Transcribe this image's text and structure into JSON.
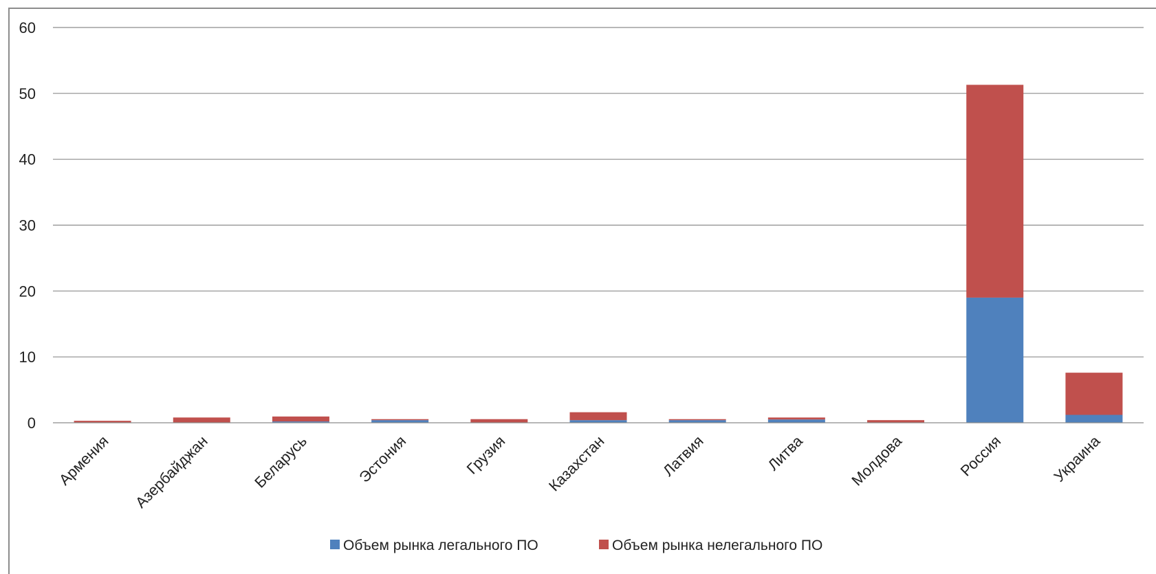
{
  "chart_data": {
    "type": "bar",
    "stacked": true,
    "title": "",
    "xlabel": "",
    "ylabel": "",
    "ylim": [
      0,
      60
    ],
    "yticks": [
      0,
      10,
      20,
      30,
      40,
      50,
      60
    ],
    "grid": true,
    "legend_position": "bottom",
    "categories": [
      "Армения",
      "Азербайджан",
      "Беларусь",
      "Эстония",
      "Грузия",
      "Казахстан",
      "Латвия",
      "Литва",
      "Молдова",
      "Россия",
      "Украина"
    ],
    "series": [
      {
        "name": "Объем рынка легального ПО",
        "color": "#4f81bd",
        "values": [
          0.05,
          0.05,
          0.2,
          0.4,
          0.05,
          0.4,
          0.4,
          0.5,
          0.05,
          19.0,
          1.2
        ]
      },
      {
        "name": "Объем рынка нелегального ПО",
        "color": "#c0504d",
        "values": [
          0.25,
          0.75,
          0.75,
          0.15,
          0.5,
          1.2,
          0.15,
          0.3,
          0.35,
          32.3,
          6.4
        ]
      }
    ]
  }
}
